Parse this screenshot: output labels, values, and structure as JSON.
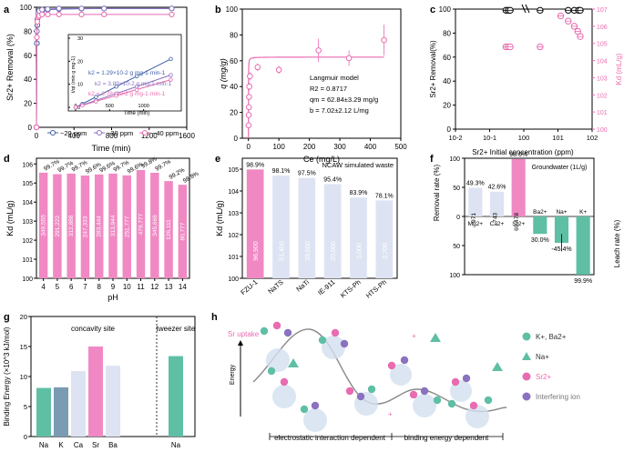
{
  "panels": {
    "a": {
      "letter": "a",
      "ylabel": "Sr2+ Removal (%)",
      "xlabel": "Time (min)",
      "xticks": [
        "0",
        "400",
        "800",
        "1200",
        "1600"
      ],
      "yticks": [
        "0",
        "20",
        "40",
        "60",
        "80",
        "100"
      ],
      "legend": [
        "~20 ppm",
        "~30 ppm",
        "~40 ppm"
      ],
      "inset": {
        "ylabel": "t/qt (min g mg-1)",
        "xlabel": "Time (min)",
        "xticks": [
          "0",
          "500",
          "1000"
        ],
        "yticks": [
          "0",
          "10",
          "20",
          "30"
        ],
        "eq1": "k2 = 1.29×10-2 g mg-1·min-1",
        "eq2": "k2 = 3.89×10-2 g mg-1·min-1",
        "eq3": "k2 = 3.78×10-2 g mg-1·min-1"
      }
    },
    "b": {
      "letter": "b",
      "ylabel": "q (mg/g)",
      "xlabel": "Ce (mg/L)",
      "xticks": [
        "0",
        "100",
        "200",
        "300",
        "400",
        "500"
      ],
      "yticks": [
        "0",
        "20",
        "40",
        "60",
        "80",
        "100"
      ],
      "model": "Langmuir model",
      "r2": "R2 = 0.8717",
      "qm": "qm = 62.84±3.29 mg/g",
      "bval": "b = 7.02±2.12 L/mg"
    },
    "c": {
      "letter": "c",
      "ylabel": "Sr2+ Removal(%)",
      "ylabel2": "Kd (mL/g)",
      "xlabel": "Sr2+ Initial concentration (ppm)",
      "xticks": [
        "10-2",
        "10-1",
        "100",
        "101",
        "102"
      ],
      "yticks": [
        "0",
        "20",
        "40",
        "60",
        "80",
        "100"
      ],
      "yticks2": [
        "100",
        "101",
        "102",
        "103",
        "104",
        "105",
        "106",
        "107"
      ]
    },
    "d": {
      "letter": "d",
      "ylabel": "Kd (mL/g)",
      "xlabel": "pH",
      "yticks": [
        "100",
        "101",
        "102",
        "103",
        "104",
        "105",
        "106"
      ]
    },
    "e": {
      "letter": "e",
      "title": "NCAW simulated waste",
      "ylabel": "Kd (mL/g)",
      "yticks": [
        "100",
        "101",
        "102",
        "103",
        "104",
        "105"
      ]
    },
    "f": {
      "letter": "f",
      "title": "Groundwater (1L/g)",
      "ylabel": "Removal rate (%)",
      "ylabel2": "Leach rate (%)",
      "yticks": [
        "100",
        "50",
        "0",
        "50",
        "100"
      ]
    },
    "g": {
      "letter": "g",
      "ylabel": "Binding Energy (×10^3 kJ/mol)",
      "site1": "concavity site",
      "site2": "tweezer site",
      "yticks": [
        "0",
        "5",
        "10",
        "15",
        "20"
      ]
    },
    "h": {
      "letter": "h",
      "sr_uptake": "Sr uptake",
      "energy": "Energy",
      "region1": "electrostatic interaction dependent",
      "region2": "binding energy dependent",
      "legend": [
        "K+, Ba2+",
        "Na+",
        "Sr2+",
        "Interfering ion"
      ]
    }
  },
  "colors": {
    "pink": "#e96bb0",
    "pinklight": "#f089c3",
    "blue": "#3f5ea8",
    "purple": "#8a72c0",
    "grayblue": "#d5dcef",
    "teal": "#5fbfa5",
    "steel": "#7a9bb2",
    "lightlav": "#dde3f2"
  },
  "chart_data": [
    {
      "panel": "a",
      "type": "line",
      "title": "",
      "xlabel": "Time (min)",
      "ylabel": "Sr2+ Removal (%)",
      "xlim": [
        0,
        1600
      ],
      "ylim": [
        0,
        100
      ],
      "series": [
        {
          "name": "~20 ppm",
          "x": [
            0,
            5,
            10,
            20,
            30,
            60,
            120,
            240,
            480,
            720,
            1440
          ],
          "y": [
            0,
            70,
            85,
            92,
            95,
            97,
            98,
            98.5,
            98.8,
            99,
            99
          ]
        },
        {
          "name": "~30 ppm",
          "x": [
            0,
            5,
            10,
            20,
            30,
            60,
            120,
            240,
            480,
            720,
            1440
          ],
          "y": [
            0,
            80,
            90,
            95,
            97,
            98,
            98.5,
            99,
            99,
            99,
            99
          ]
        },
        {
          "name": "~40 ppm",
          "x": [
            0,
            5,
            10,
            20,
            30,
            60,
            120,
            240,
            480,
            720,
            1440
          ],
          "y": [
            0,
            75,
            88,
            92,
            93,
            94,
            94,
            94,
            94,
            94,
            94
          ]
        }
      ],
      "inset": {
        "xlim": [
          0,
          1500
        ],
        "ylim": [
          0,
          30
        ],
        "series": [
          {
            "name": "~20 ppm",
            "x": [
              0,
              100,
              300,
              600,
              900,
              1400
            ],
            "y": [
              0,
              1.5,
              4.5,
              9,
              13.5,
              21
            ]
          },
          {
            "name": "~30 ppm",
            "x": [
              0,
              100,
              300,
              600,
              900,
              1400
            ],
            "y": [
              0,
              1,
              3,
              6,
              9,
              14
            ]
          },
          {
            "name": "~40 ppm",
            "x": [
              0,
              100,
              300,
              600,
              900,
              1400
            ],
            "y": [
              0,
              0.8,
              2.5,
              5,
              7.5,
              12
            ]
          }
        ]
      }
    },
    {
      "panel": "b",
      "type": "scatter",
      "title": "",
      "xlabel": "Ce (mg/L)",
      "ylabel": "q (mg/g)",
      "xlim": [
        -20,
        500
      ],
      "ylim": [
        0,
        100
      ],
      "x": [
        0.5,
        1,
        1.5,
        2,
        3,
        5,
        30,
        100,
        230,
        330,
        445
      ],
      "y": [
        10,
        18,
        24,
        32,
        40,
        48,
        55,
        53,
        68,
        62,
        76
      ],
      "err": [
        0,
        2,
        2,
        2,
        3,
        3,
        3,
        3,
        9,
        6,
        12
      ],
      "fit": {
        "qm": 62.84,
        "b": 7.02
      }
    },
    {
      "panel": "c",
      "type": "scatter",
      "xlabel": "Sr2+ Initial concentration (ppm)",
      "ylabel": "Sr2+ Removal(%)",
      "ylabel2": "Kd (mL/g)",
      "x_removal": [
        0.3,
        0.35,
        0.4,
        3,
        20,
        30,
        40,
        45
      ],
      "removal": [
        99,
        99,
        99,
        99,
        99,
        99,
        99,
        99
      ],
      "x_kd": [
        0.3,
        0.35,
        0.4,
        3,
        12,
        20,
        30,
        38,
        45
      ],
      "kd_log10": [
        4.8,
        4.8,
        4.8,
        4.8,
        6.6,
        6.3,
        6.0,
        5.7,
        5.4
      ]
    },
    {
      "panel": "d",
      "type": "bar",
      "xlabel": "pH",
      "ylabel": "Kd (mL/g)",
      "yscale": "log",
      "ylim": [
        1,
        1000000
      ],
      "categories": [
        "4",
        "5",
        "6",
        "7",
        "8",
        "9",
        "10",
        "11",
        "12",
        "13",
        "14"
      ],
      "values": [
        349555,
        291222,
        312888,
        247333,
        283444,
        313944,
        251777,
        479777,
        345666,
        126111,
        80777
      ],
      "value_labels": [
        "349,555",
        "291,222",
        "312,888",
        "247,333",
        "283,444",
        "313,944",
        "251,777",
        "479,777",
        "345,666",
        "126,111",
        "80,777"
      ],
      "removal_labels": [
        "99.7%",
        "99.7%",
        "99.7%",
        "99.6%",
        "99.6%",
        "99.7%",
        "99.6%",
        "99.8%",
        "99.7%",
        "99.2%",
        "98.8%"
      ]
    },
    {
      "panel": "e",
      "type": "bar",
      "title": "NCAW simulated waste",
      "ylabel": "Kd (mL/g)",
      "yscale": "log",
      "ylim": [
        1,
        100000
      ],
      "categories": [
        "FZU-1",
        "NaTS",
        "NaTi",
        "IE-911",
        "KTS-Ph",
        "HTS-Ph"
      ],
      "values": [
        96900,
        51400,
        39600,
        20600,
        5000,
        3700
      ],
      "value_labels": [
        "96,900",
        "51,400",
        "39,600",
        "20,600",
        "5,000",
        "3,700"
      ],
      "removal_labels": [
        "98.9%",
        "98.1%",
        "97.5%",
        "95.4%",
        "83.9%",
        "78.1%"
      ]
    },
    {
      "panel": "f",
      "type": "bar",
      "title": "Groundwater (1L/g)",
      "ylabel": "Removal rate (%)",
      "ylabel2": "Leach rate (%)",
      "ylim": [
        -100,
        100
      ],
      "categories": [
        "Mg2+",
        "Ca2+",
        "Sr2+",
        "Ba2+",
        "Na+",
        "K+"
      ],
      "values": [
        49.3,
        42.6,
        98.6,
        -30.0,
        -45.4,
        -99.9
      ],
      "pct_labels": [
        "49.3%",
        "42.6%",
        "98.6%",
        "30.0%",
        "-45.4%",
        "99.9%"
      ],
      "kd_labels": [
        "971",
        "743",
        "69,478",
        "",
        "",
        ""
      ]
    },
    {
      "panel": "g",
      "type": "bar",
      "ylabel": "Binding Energy (×10^3 kJ/mol)",
      "ylim": [
        0,
        20
      ],
      "categories": [
        "Na",
        "K",
        "Ca",
        "Sr",
        "Ba",
        "Na"
      ],
      "groups": [
        "concavity site",
        "concavity site",
        "concavity site",
        "concavity site",
        "concavity site",
        "tweezer site"
      ],
      "values": [
        8.1,
        8.2,
        10.9,
        15.0,
        11.8,
        13.4
      ]
    }
  ]
}
